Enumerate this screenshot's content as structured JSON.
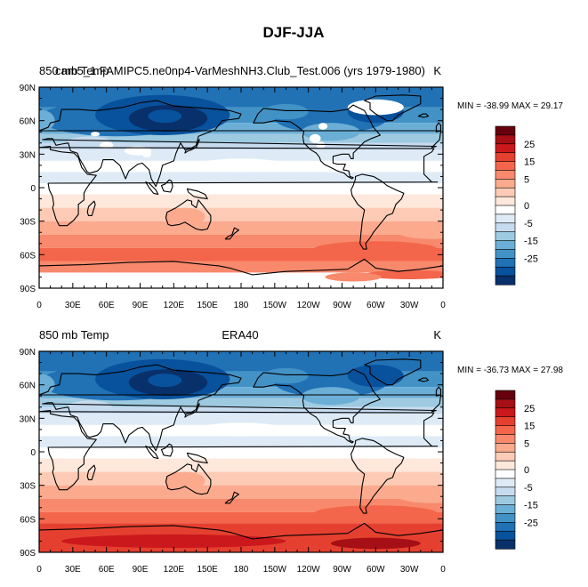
{
  "figure": {
    "title": "DJF-JJA"
  },
  "panels": [
    {
      "left_label": "850 mb Temp",
      "center_label": "cam5_1.FAMIPC5.ne0np4-VarMeshNH3.Club_Test.006 (yrs 1979-1980)",
      "right_label": "K",
      "stats": "MIN = -38.99 MAX =  29.17",
      "has_missing": true
    },
    {
      "left_label": "850 mb Temp",
      "center_label": "ERA40",
      "right_label": "K",
      "stats": "MIN = -36.73 MAX =  27.98",
      "has_missing": false
    }
  ],
  "axes": {
    "lon_ticks": [
      "0",
      "30E",
      "60E",
      "90E",
      "120E",
      "150E",
      "180",
      "150W",
      "120W",
      "90W",
      "60W",
      "30W",
      "0"
    ],
    "lat_ticks": [
      "90N",
      "60N",
      "30N",
      "0",
      "30S",
      "60S",
      "90S"
    ]
  },
  "colorbar": {
    "labels": [
      "25",
      "15",
      "5",
      "0",
      "-5",
      "-15",
      "-25"
    ],
    "colors": [
      "#67000d",
      "#a50f15",
      "#cb181d",
      "#e5402f",
      "#f3664b",
      "#f8896c",
      "#fbaa8e",
      "#fdcbb5",
      "#fee7db",
      "#ffffff",
      "#deebf7",
      "#c6dbef",
      "#9ecae1",
      "#6baed6",
      "#4292c6",
      "#2171b5",
      "#08519c",
      "#08306b"
    ]
  }
}
